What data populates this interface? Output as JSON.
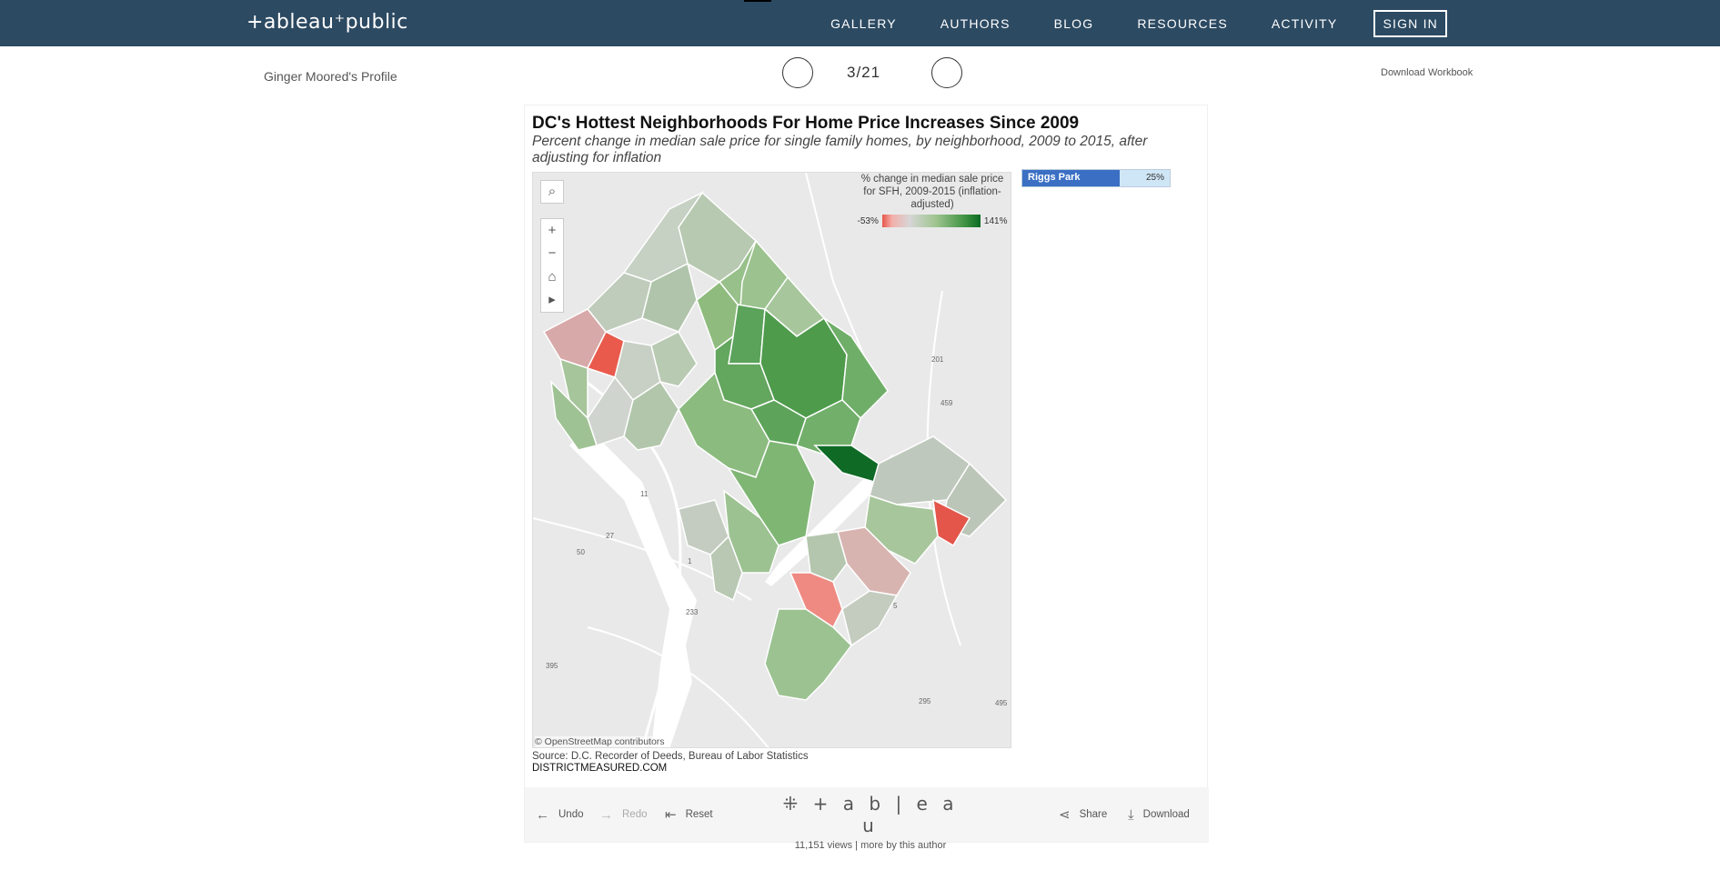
{
  "nav": {
    "logo": "+ableau⁺public",
    "items": [
      "GALLERY",
      "AUTHORS",
      "BLOG",
      "RESOURCES",
      "ACTIVITY"
    ],
    "signin": "SIGN IN"
  },
  "subheader": {
    "profile": "Ginger Moored's Profile",
    "pager": "3/21",
    "download_workbook": "Download Workbook"
  },
  "viz": {
    "title": "DC's Hottest Neighborhoods For Home Price Increases Since 2009",
    "subtitle": "Percent change in median sale price for single family homes, by neighborhood, 2009 to 2015, after adjusting for inflation",
    "legend": {
      "title": "% change in median sale price for SFH, 2009-2015 (inflation-adjusted)",
      "min_label": "-53%",
      "max_label": "141%",
      "colors": {
        "low": "#e8564a",
        "mid": "#d6d6d6",
        "high": "#0b6b24"
      }
    },
    "map_attribution": "© OpenStreetMap contributors",
    "source": "Source: D.C. Recorder of Deeds, Bureau of Labor Statistics",
    "site": "DISTRICTMEASURED.COM",
    "highlight": {
      "name": "Riggs Park",
      "value_label": "25%",
      "fraction": 0.66
    },
    "road_labels": [
      "201",
      "459",
      "11",
      "27",
      "50",
      "1",
      "233",
      "5",
      "295",
      "495",
      "395"
    ]
  },
  "toolbar": {
    "undo": "Undo",
    "redo": "Redo",
    "reset": "Reset",
    "logo": "+ a b | e a u",
    "views": "11,151 views | more by this author",
    "share": "Share",
    "download": "Download"
  }
}
